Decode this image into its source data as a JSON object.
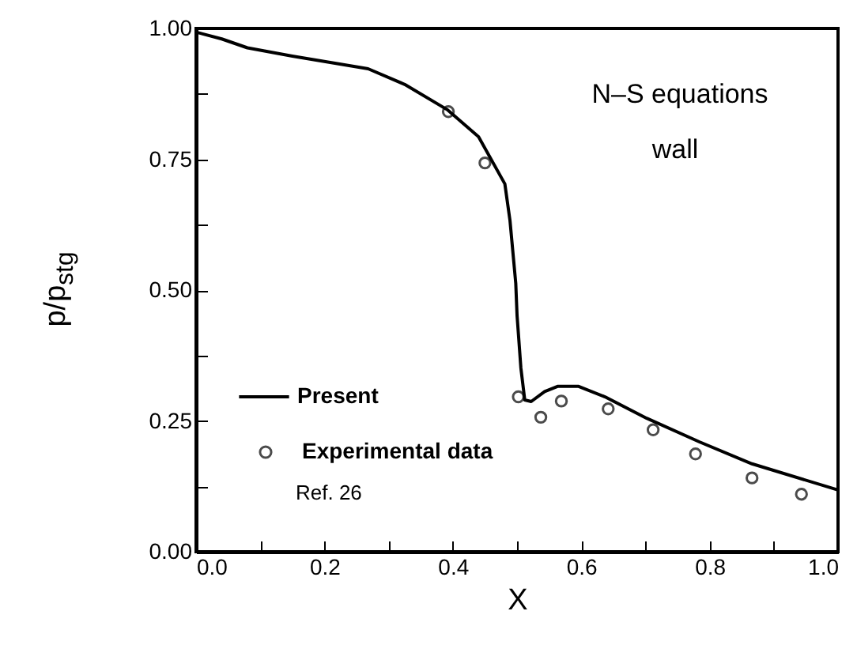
{
  "chart_data": {
    "type": "line",
    "xlabel": "X",
    "ylabel": "p/p$_{stg}$",
    "annotations": [
      "N–S equations",
      "wall",
      "Ref. 26"
    ],
    "xlim": [
      0,
      1
    ],
    "ylim": [
      0,
      1
    ],
    "xticks": [
      {
        "value": 0,
        "label": "0.0"
      },
      {
        "value": 0.1,
        "label": null
      },
      {
        "value": 0.2,
        "label": "0.2"
      },
      {
        "value": 0.3,
        "label": null
      },
      {
        "value": 0.4,
        "label": "0.4"
      },
      {
        "value": 0.5,
        "label": null
      },
      {
        "value": 0.6,
        "label": "0.6"
      },
      {
        "value": 0.7,
        "label": null
      },
      {
        "value": 0.8,
        "label": "0.8"
      },
      {
        "value": 0.9,
        "label": null
      },
      {
        "value": 1,
        "label": "1.0"
      }
    ],
    "yticks": [
      {
        "value": 0,
        "label": "0.00"
      },
      {
        "value": 0.125,
        "label": null
      },
      {
        "value": 0.25,
        "label": "0.25"
      },
      {
        "value": 0.375,
        "label": null
      },
      {
        "value": 0.5,
        "label": "0.50"
      },
      {
        "value": 0.625,
        "label": null
      },
      {
        "value": 0.75,
        "label": "0.75"
      },
      {
        "value": 0.875,
        "label": null
      },
      {
        "value": 1,
        "label": "1.00"
      }
    ],
    "legend": "bottom left",
    "grid": false,
    "series": [
      {
        "name": "Present",
        "color": "#000000",
        "x": [
          0,
          0.04,
          0.08,
          0.15,
          0.268,
          0.325,
          0.391,
          0.44,
          0.481,
          0.489,
          0.498,
          0.5,
          0.506,
          0.512,
          0.522,
          0.543,
          0.563,
          0.596,
          0.637,
          0.702,
          0.784,
          0.866,
          1.0
        ],
        "values": [
          0.993,
          0.98,
          0.963,
          0.947,
          0.923,
          0.893,
          0.845,
          0.793,
          0.703,
          0.633,
          0.513,
          0.452,
          0.351,
          0.29,
          0.287,
          0.306,
          0.316,
          0.316,
          0.296,
          0.255,
          0.21,
          0.168,
          0.118
        ]
      },
      {
        "name": "Experimental data",
        "type": "scatter",
        "marker": "circle",
        "color": "#000000",
        "x": [
          0.393,
          0.45,
          0.502,
          0.537,
          0.569,
          0.642,
          0.712,
          0.778,
          0.866,
          0.943
        ],
        "values": [
          0.841,
          0.743,
          0.296,
          0.257,
          0.288,
          0.273,
          0.233,
          0.187,
          0.141,
          0.11
        ]
      }
    ]
  }
}
